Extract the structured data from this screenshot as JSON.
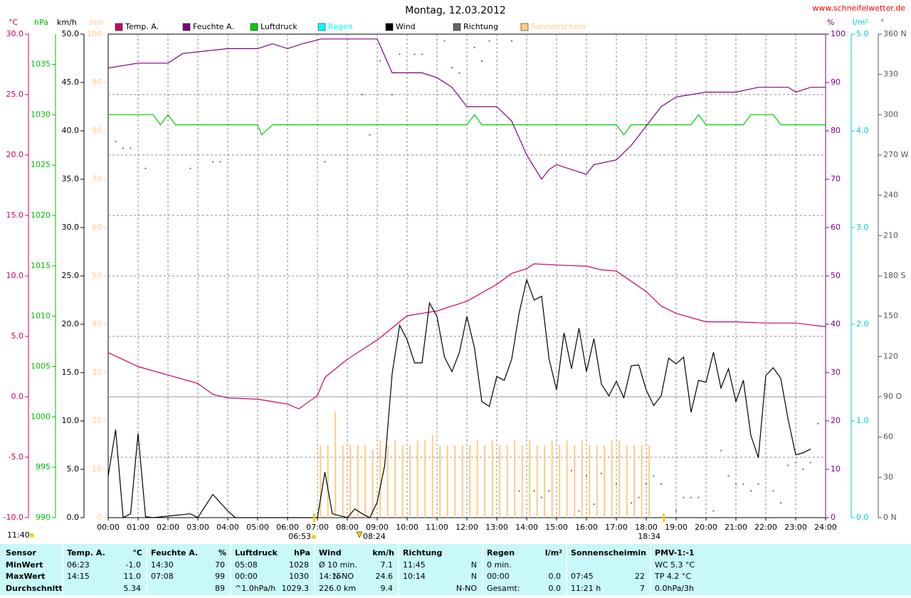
{
  "chart_data": {
    "type": "line",
    "title": "Montag, 12.03.2012",
    "source": "www.schneifelwetter.de",
    "xlim": [
      0,
      24
    ],
    "xticks": [
      {
        "value": 0,
        "label": "00:00"
      },
      {
        "value": 1,
        "label": "01:00"
      },
      {
        "value": 2,
        "label": "02:00"
      },
      {
        "value": 3,
        "label": "03:00"
      },
      {
        "value": 4,
        "label": "04:00"
      },
      {
        "value": 5,
        "label": "05:00"
      },
      {
        "value": 6,
        "label": "06:00"
      },
      {
        "value": 7,
        "label": "07:00"
      },
      {
        "value": 8,
        "label": "08:00"
      },
      {
        "value": 9,
        "label": "09:00"
      },
      {
        "value": 10,
        "label": "10:00"
      },
      {
        "value": 11,
        "label": "11:00"
      },
      {
        "value": 12,
        "label": "12:00"
      },
      {
        "value": 13,
        "label": "13:00"
      },
      {
        "value": 14,
        "label": "14:00"
      },
      {
        "value": 15,
        "label": "15:00"
      },
      {
        "value": 16,
        "label": "16:00"
      },
      {
        "value": 17,
        "label": "17:00"
      },
      {
        "value": 18,
        "label": "18:00"
      },
      {
        "value": 19,
        "label": "19:00"
      },
      {
        "value": 20,
        "label": "20:00"
      },
      {
        "value": 21,
        "label": "21:00"
      },
      {
        "value": 22,
        "label": "22:00"
      },
      {
        "value": 23,
        "label": "23:00"
      },
      {
        "value": 24,
        "label": "24:00"
      }
    ],
    "grid": true,
    "axes": {
      "y": {
        "unit": "°C",
        "color": "#cc0066",
        "lim": [
          -10,
          30
        ],
        "ticks": [
          {
            "value": -10,
            "label": "-10.0"
          },
          {
            "value": -5,
            "label": "-5.0"
          },
          {
            "value": 0,
            "label": "0.0"
          },
          {
            "value": 5,
            "label": "5.0"
          },
          {
            "value": 10,
            "label": "10.0"
          },
          {
            "value": 15,
            "label": "15.0"
          },
          {
            "value": 20,
            "label": "20.0"
          },
          {
            "value": 25,
            "label": "25.0"
          },
          {
            "value": 30,
            "label": "30.0"
          }
        ]
      },
      "y2": {
        "unit": "hPa",
        "color": "#00bb00",
        "lim": [
          990,
          1038
        ],
        "ticks": [
          990,
          995,
          1000,
          1005,
          1010,
          1015,
          1020,
          1025,
          1030,
          1035
        ]
      },
      "y3": {
        "unit": "km/h",
        "color": "#000000",
        "lim": [
          0,
          50
        ],
        "ticks": [
          {
            "value": 0,
            "label": "0.0"
          },
          {
            "value": 5,
            "label": "5.0"
          },
          {
            "value": 10,
            "label": "10.0"
          },
          {
            "value": 15,
            "label": "15.0"
          },
          {
            "value": 20,
            "label": "20.0"
          },
          {
            "value": 25,
            "label": "25.0"
          },
          {
            "value": 30,
            "label": "30.0"
          },
          {
            "value": 35,
            "label": "35.0"
          },
          {
            "value": 40,
            "label": "40.0"
          },
          {
            "value": 45,
            "label": "45.0"
          },
          {
            "value": 50,
            "label": "50.0"
          }
        ]
      },
      "y4": {
        "unit": "min",
        "color": "#ffcc99",
        "lim": [
          0,
          100
        ],
        "ticks": [
          0,
          10,
          20,
          30,
          40,
          50,
          60,
          70,
          80,
          90,
          100
        ]
      },
      "y5": {
        "unit": "%",
        "color": "#800080",
        "lim": [
          0,
          100
        ],
        "ticks": [
          0,
          10,
          20,
          30,
          40,
          50,
          60,
          70,
          80,
          90,
          100
        ]
      },
      "y6": {
        "unit": "l/m²",
        "color": "#00cccc",
        "lim": [
          0,
          5
        ],
        "ticks": [
          {
            "value": 0,
            "label": "0.0"
          },
          {
            "value": 1,
            "label": "1.0"
          },
          {
            "value": 2,
            "label": "2.0"
          },
          {
            "value": 3,
            "label": "3.0"
          },
          {
            "value": 4,
            "label": "4.0"
          },
          {
            "value": 5,
            "label": "5.0"
          }
        ]
      },
      "y7": {
        "unit": "°",
        "color": "#555555",
        "lim": [
          0,
          360
        ],
        "ticks": [
          {
            "value": 0,
            "label": "0 N"
          },
          30,
          60,
          {
            "value": 90,
            "label": "90 O"
          },
          120,
          150,
          {
            "value": 180,
            "label": "180 S"
          },
          210,
          240,
          {
            "value": 270,
            "label": "270 W"
          },
          300,
          330,
          {
            "value": 360,
            "label": "360 N"
          }
        ]
      }
    },
    "series": [
      {
        "name": "Temp. A.",
        "type": "line",
        "axis": "y",
        "color": "#cc0066",
        "x": [
          0,
          1,
          2,
          3,
          3.5,
          4,
          5,
          6,
          6.38,
          7,
          7.25,
          8,
          9,
          10,
          11,
          12,
          13,
          13.5,
          14,
          14.25,
          15,
          16,
          16.5,
          17,
          18,
          18.5,
          19,
          20,
          21,
          22,
          23,
          24
        ],
        "values": [
          3.65,
          2.5,
          1.8,
          1.1,
          0.2,
          -0.1,
          -0.2,
          -0.6,
          -1.0,
          0.1,
          1.6,
          3.1,
          4.7,
          6.7,
          7.1,
          7.9,
          9.3,
          10.2,
          10.6,
          11.0,
          10.9,
          10.8,
          10.5,
          10.4,
          8.7,
          7.5,
          6.9,
          6.2,
          6.2,
          6.1,
          6.1,
          5.8
        ]
      },
      {
        "name": "Feuchte A.",
        "type": "line",
        "axis": "y5",
        "color": "#800080",
        "x": [
          0,
          1,
          2,
          2.5,
          4,
          5,
          5.5,
          6,
          6.5,
          7.13,
          9,
          9.5,
          10.5,
          11,
          11.5,
          12,
          13,
          13.5,
          14,
          14.5,
          14.75,
          15,
          16,
          16.25,
          17,
          17.5,
          18,
          18.5,
          19,
          20,
          21,
          21.75,
          22.75,
          23,
          23.5,
          24
        ],
        "values": [
          93,
          94,
          94,
          96,
          97,
          97,
          98,
          97,
          98,
          99,
          99,
          92,
          92,
          91,
          89,
          85,
          85,
          82,
          75,
          70,
          72,
          73,
          71,
          73,
          74,
          77,
          81,
          85,
          87,
          88,
          88,
          89,
          89,
          88,
          89,
          89
        ]
      },
      {
        "name": "Luftdruck",
        "type": "line",
        "axis": "y2",
        "color": "#00cc00",
        "x": [
          0,
          1.5,
          1.75,
          2,
          2.25,
          5,
          5.13,
          5.5,
          12,
          12.25,
          12.5,
          17,
          17.25,
          17.5,
          19.5,
          19.75,
          20,
          21.25,
          21.5,
          22.25,
          22.5,
          24
        ],
        "values": [
          1030,
          1030,
          1029,
          1030,
          1029,
          1029,
          1028,
          1029,
          1029,
          1030,
          1029,
          1029,
          1028,
          1029,
          1029,
          1030,
          1029,
          1029,
          1030,
          1030,
          1029,
          1029
        ]
      },
      {
        "name": "Regen",
        "type": "line",
        "axis": "y6",
        "color": "#00ffff",
        "x": [],
        "values": []
      },
      {
        "name": "Wind",
        "type": "line",
        "axis": "y3",
        "color": "#000000",
        "x": [
          0,
          0.25,
          0.5,
          0.75,
          1,
          1.25,
          1.5,
          2.75,
          3,
          3.5,
          4,
          4.25,
          7,
          7.25,
          7.5,
          7.75,
          8,
          8.25,
          8.5,
          8.75,
          9,
          9.25,
          9.5,
          9.75,
          10,
          10.25,
          10.5,
          10.75,
          11,
          11.25,
          11.5,
          11.75,
          12,
          12.25,
          12.5,
          12.75,
          13,
          13.25,
          13.5,
          13.75,
          14,
          14.25,
          14.5,
          14.75,
          15,
          15.25,
          15.5,
          15.75,
          16,
          16.25,
          16.5,
          16.75,
          17,
          17.25,
          17.5,
          17.75,
          18,
          18.25,
          18.5,
          18.75,
          19,
          19.25,
          19.5,
          19.75,
          20,
          20.25,
          20.5,
          20.75,
          21,
          21.25,
          21.5,
          21.75,
          22,
          22.25,
          22.5,
          22.75,
          23,
          23.25,
          23.5
        ],
        "values": [
          4.3,
          9.1,
          0,
          0.4,
          8.7,
          0.1,
          0,
          0.4,
          0,
          2.4,
          0.7,
          0,
          0,
          4.7,
          0.4,
          0.2,
          0,
          0.9,
          0.4,
          0,
          1.6,
          5.4,
          14.9,
          19.9,
          18.4,
          16,
          16,
          22.2,
          20.8,
          16.6,
          15.1,
          17.1,
          20.8,
          17.6,
          12,
          11.5,
          14.6,
          14.2,
          16.4,
          21.2,
          24.6,
          22.5,
          22.9,
          16.4,
          13.2,
          19.1,
          15.4,
          19.6,
          15.1,
          18.5,
          13.8,
          12.6,
          14.1,
          12.4,
          15.7,
          15.8,
          13.2,
          11.6,
          12.6,
          16.5,
          15.9,
          16.6,
          10.9,
          14.2,
          14,
          17.1,
          13.4,
          15.4,
          12,
          14.2,
          8.5,
          6.2,
          14.7,
          15.5,
          14.4,
          10.1,
          6.5,
          6.7,
          7.1
        ]
      },
      {
        "name": "Richtung",
        "type": "scatter",
        "axis": "y7",
        "color": "#666666",
        "x": [
          0.25,
          0.5,
          0.75,
          1.25,
          2.75,
          3.5,
          3.75,
          7.25,
          8.5,
          8.75,
          9.1,
          9.5,
          9.75,
          10.25,
          10.5,
          11.25,
          11.5,
          11.75,
          12.25,
          12.5,
          12.75,
          13.5,
          13.75,
          14.25,
          14.5,
          14.75,
          15.5,
          15.75,
          16,
          16.25,
          16.5,
          17,
          17.5,
          17.75,
          18,
          18.25,
          18.5,
          19,
          19.25,
          19.5,
          19.75,
          20.25,
          20.5,
          20.75,
          21,
          21.25,
          21.5,
          21.75,
          22.25,
          22.5,
          22.75,
          23,
          23.25,
          23.5,
          23.75
        ],
        "values": [
          280,
          275,
          275,
          260,
          260,
          265,
          265,
          265,
          315,
          285,
          340,
          315,
          345,
          345,
          345,
          355,
          335,
          331,
          350,
          340,
          355,
          355,
          20,
          20,
          15,
          20,
          35,
          5,
          31,
          10,
          33,
          25,
          11,
          15,
          25,
          31,
          25,
          5,
          15,
          15,
          15,
          5,
          50,
          31,
          25,
          25,
          20,
          25,
          20,
          11,
          39,
          41,
          36,
          41,
          70
        ]
      },
      {
        "name": "Sonnenschein",
        "type": "bar",
        "axis": "y4",
        "color": "#ffcc80",
        "x": [
          7.1,
          7.35,
          7.6,
          7.85,
          8.1,
          8.35,
          8.6,
          8.85,
          9.1,
          9.35,
          9.6,
          9.85,
          10.1,
          10.35,
          10.6,
          10.85,
          11.1,
          11.35,
          11.6,
          11.85,
          12.1,
          12.35,
          12.6,
          12.85,
          13.1,
          13.35,
          13.6,
          13.85,
          14.1,
          14.35,
          14.6,
          14.85,
          15.1,
          15.35,
          15.6,
          15.85,
          16.1,
          16.35,
          16.6,
          16.85,
          17.1,
          17.35,
          17.6,
          17.85,
          18.1
        ],
        "values": [
          15,
          15,
          22,
          15,
          15,
          15,
          15,
          14,
          16,
          15,
          16,
          15,
          15,
          16,
          16,
          17,
          15,
          15,
          15,
          15,
          15,
          16,
          15,
          16,
          15,
          15,
          16,
          15,
          16,
          15,
          15,
          16,
          15,
          16,
          15,
          16,
          15,
          15,
          15,
          16,
          16,
          15,
          15,
          15,
          15
        ]
      }
    ],
    "annotations": [
      "11:40",
      "06:53",
      "08:24",
      "18:34"
    ]
  },
  "table": {
    "sensor": {
      "title": "Sensor",
      "rows": [
        "MinWert",
        "MaxWert",
        "Durchschnitt"
      ]
    },
    "groups": [
      {
        "title": "Temp. A.",
        "unit": "°C",
        "rows": [
          {
            "left": "06:23",
            "right": "-1.0"
          },
          {
            "left": "14:15",
            "right": "11.0"
          },
          {
            "right": "5.34"
          }
        ]
      },
      {
        "title": "Feuchte A.",
        "unit": "%",
        "rows": [
          {
            "left": "14:30",
            "right": "70"
          },
          {
            "left": "07:08",
            "right": "99"
          },
          {
            "right": "89"
          }
        ]
      },
      {
        "title": "Luftdruck",
        "unit": "hPa",
        "rows": [
          {
            "left": "05:08",
            "right": "1028"
          },
          {
            "left": "00:00",
            "right": "1030"
          },
          {
            "left": "^1.0hPa/h",
            "right": "1029.3"
          }
        ]
      },
      {
        "title": "Wind",
        "unit": "km/h",
        "rows": [
          {
            "left": "Ø 10 min.",
            "right": "7.1"
          },
          {
            "left": "14:15",
            "mid": "N-NO",
            "right": "24.6"
          },
          {
            "left": "226.0 km",
            "right": "9.4"
          }
        ]
      },
      {
        "title": "Richtung",
        "rows": [
          {
            "left": "11:45",
            "right": "N"
          },
          {
            "left": "10:14",
            "right": "N"
          },
          {
            "right": "N-NO"
          }
        ]
      },
      {
        "title": "Regen",
        "unit": "l/m²",
        "rows": [
          {
            "left": "0 min."
          },
          {
            "left": "00:00",
            "right": "0.0"
          },
          {
            "left": "Gesamt:",
            "right": "0.0"
          }
        ]
      },
      {
        "title": "Sonnenschein",
        "unit": "min",
        "rows": [
          {},
          {
            "left": "07:45",
            "right": "22"
          },
          {
            "left": "11:21 h",
            "right": "7"
          }
        ]
      },
      {
        "title": "PMV-1:-1",
        "rows": [
          {
            "left": "WC 5.3 °C"
          },
          {
            "left": "TP 4.2 °C"
          },
          {
            "left": "0.0hPa/3h"
          }
        ]
      }
    ]
  }
}
